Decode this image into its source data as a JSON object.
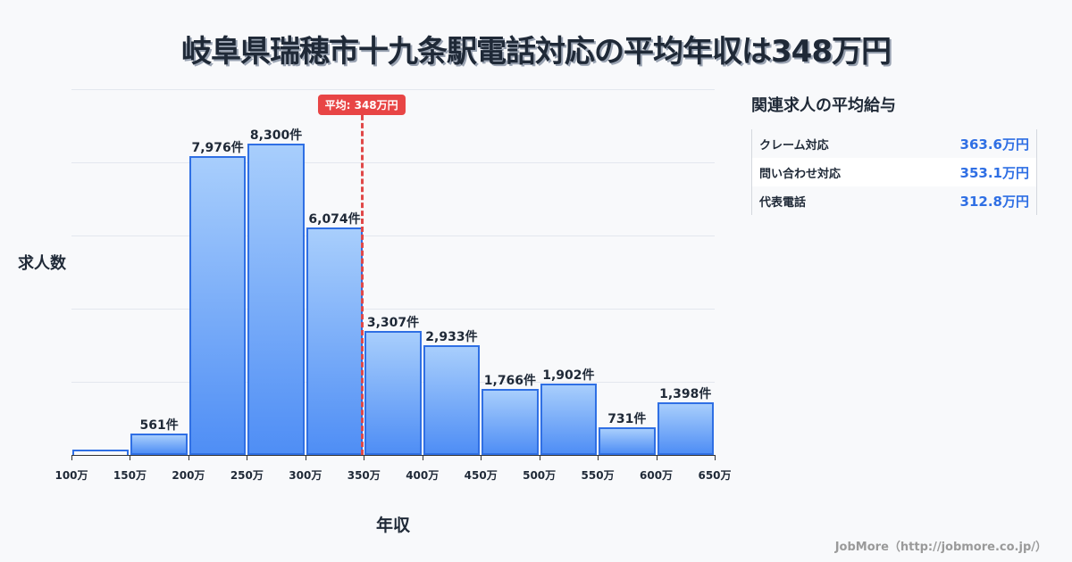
{
  "title": "岐阜県瑞穂市十九条駅電話対応の平均年収は348万円",
  "chart_data": {
    "type": "bar",
    "title": "岐阜県瑞穂市十九条駅電話対応の平均年収は348万円",
    "xlabel": "年収",
    "ylabel": "求人数",
    "categories": [
      "100-150万",
      "150-200万",
      "200-250万",
      "250-300万",
      "300-350万",
      "350-400万",
      "400-450万",
      "450-500万",
      "500-550万",
      "550-600万",
      "600-650万"
    ],
    "values": [
      15,
      561,
      7976,
      8300,
      6074,
      3307,
      2933,
      1766,
      1902,
      731,
      1398
    ],
    "value_labels": [
      "",
      "561件",
      "7,976件",
      "8,300件",
      "6,074件",
      "3,307件",
      "2,933件",
      "1,766件",
      "1,902件",
      "731件",
      "1,398件"
    ],
    "x_ticks": [
      "100万",
      "150万",
      "200万",
      "250万",
      "300万",
      "350万",
      "400万",
      "450万",
      "500万",
      "550万",
      "600万",
      "650万"
    ],
    "grid": true,
    "average_line": {
      "value": 348,
      "label": "平均: 348万円"
    },
    "colors": {
      "bar_fill_top": "#a8cefc",
      "bar_fill_bottom": "#4f8ef5",
      "bar_border": "#2f6fe4",
      "average": "#e84545"
    }
  },
  "sidebar": {
    "title": "関連求人の平均給与",
    "rows": [
      {
        "name": "クレーム対応",
        "value": "363.6万円"
      },
      {
        "name": "問い合わせ対応",
        "value": "353.1万円"
      },
      {
        "name": "代表電話",
        "value": "312.8万円"
      }
    ]
  },
  "footer": "JobMore（http://jobmore.co.jp/）"
}
